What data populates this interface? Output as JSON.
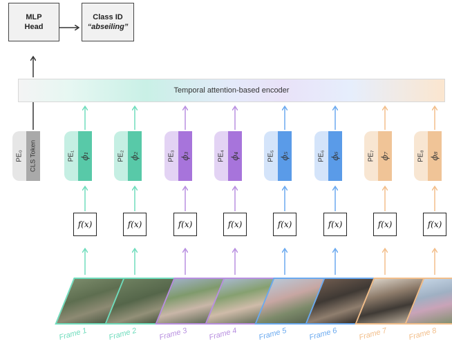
{
  "mlp_head": {
    "line1": "MLP",
    "line2": "Head"
  },
  "class_id": {
    "title": "Class ID",
    "value": "“abseiling”"
  },
  "encoder": {
    "label": "Temporal attention-based encoder"
  },
  "cls": {
    "pe_label": "PE₀",
    "token_label": "CLS Token"
  },
  "columns": [
    {
      "pe": "PE₁",
      "phi": "ϕ₁",
      "fx": "f(x)",
      "frame": "Frame 1",
      "color": "#6fdcbc",
      "dark": "#58c9a8",
      "light": "#c5efe3"
    },
    {
      "pe": "PE₂",
      "phi": "ϕ₂",
      "fx": "f(x)",
      "frame": "Frame 2",
      "color": "#6fdcbc",
      "dark": "#58c9a8",
      "light": "#c5efe3"
    },
    {
      "pe": "PE₃",
      "phi": "ϕ₃",
      "fx": "f(x)",
      "frame": "Frame 3",
      "color": "#b88fe0",
      "dark": "#a774db",
      "light": "#e3d3f4"
    },
    {
      "pe": "PE₄",
      "phi": "ϕ₄",
      "fx": "f(x)",
      "frame": "Frame 4",
      "color": "#b88fe0",
      "dark": "#a774db",
      "light": "#e3d3f4"
    },
    {
      "pe": "PE₅",
      "phi": "ϕ₅",
      "fx": "f(x)",
      "frame": "Frame 5",
      "color": "#6aa9ef",
      "dark": "#5a9be8",
      "light": "#d4e4fa"
    },
    {
      "pe": "PE₆",
      "phi": "ϕ₆",
      "fx": "f(x)",
      "frame": "Frame 6",
      "color": "#6aa9ef",
      "dark": "#5a9be8",
      "light": "#d4e4fa"
    },
    {
      "pe": "PE₇",
      "phi": "ϕ₇",
      "fx": "f(x)",
      "frame": "Frame 7",
      "color": "#f2be8a",
      "dark": "#f0c497",
      "light": "#f8e6d2"
    },
    {
      "pe": "PE₈",
      "phi": "ϕ₈",
      "fx": "f(x)",
      "frame": "Frame 8",
      "color": "#f2be8a",
      "dark": "#f0c497",
      "light": "#f8e6d2"
    }
  ]
}
